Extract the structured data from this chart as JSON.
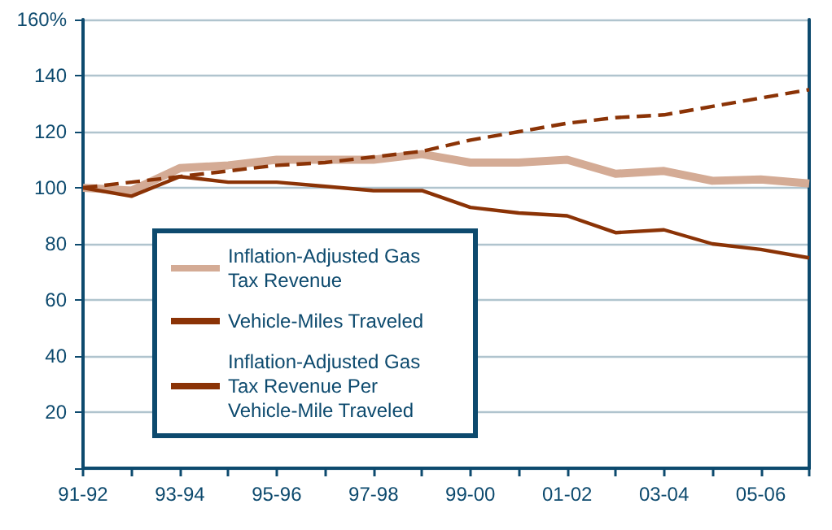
{
  "chart_data": {
    "type": "line",
    "categories": [
      "91-92",
      null,
      "93-94",
      null,
      "95-96",
      null,
      "97-98",
      null,
      "99-00",
      null,
      "01-02",
      null,
      "03-04",
      null,
      "05-06",
      null
    ],
    "series": [
      {
        "name": "Inflation-Adjusted Gas Tax Revenue",
        "color": "#d4ab95",
        "values": [
          100,
          99,
          107,
          108,
          110,
          110,
          110,
          112,
          109,
          109,
          110,
          105,
          106,
          102.5,
          103,
          101.5
        ]
      },
      {
        "name": "Vehicle-Miles Traveled",
        "color": "#8b3306",
        "line_style": "dashed",
        "values": [
          100,
          102,
          104,
          106,
          108,
          109,
          111,
          113,
          117,
          120,
          123,
          125,
          126,
          129,
          132,
          135
        ]
      },
      {
        "name": "Inflation-Adjusted Gas Tax Revenue Per Vehicle-Mile Traveled",
        "color": "#8b3306",
        "values": [
          100,
          97,
          104,
          102,
          102,
          100.5,
          99,
          99,
          93,
          91,
          90,
          84,
          85,
          80,
          78,
          75
        ]
      }
    ],
    "ylim": [
      0,
      160
    ],
    "yticks": [
      {
        "value": 0,
        "label": null
      },
      20,
      40,
      60,
      80,
      100,
      120,
      140,
      {
        "value": 160,
        "label": "160%"
      }
    ],
    "grid": "y",
    "legend": "bottom left",
    "marker": "none",
    "line_style": "solid"
  }
}
